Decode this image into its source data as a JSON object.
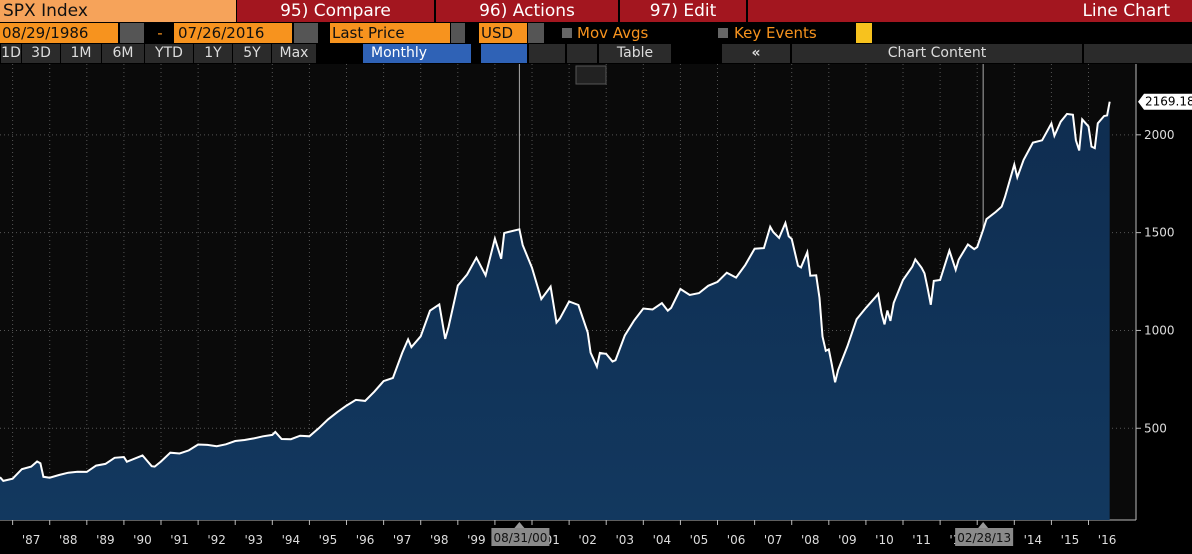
{
  "toolbar": {
    "security": "SPX Index",
    "compare": "95) Compare",
    "actions": "96) Actions",
    "edit": "97) Edit",
    "view": "Line Chart",
    "start_date": "08/29/1986",
    "dash": "-",
    "end_date": "07/26/2016",
    "field": "Last Price",
    "currency": "USD",
    "mov_avgs": "Mov Avgs",
    "key_events": "Key Events",
    "ranges": [
      "1D",
      "3D",
      "1M",
      "6M",
      "YTD",
      "1Y",
      "5Y",
      "Max"
    ],
    "period": "Monthly",
    "table": "Table",
    "collapse": "«",
    "chart_content": "Chart Content"
  },
  "chart_data": {
    "type": "line",
    "xlim": [
      1986.66,
      2017.28
    ],
    "ylim": [
      31,
      2362
    ],
    "yticks": [
      500,
      1000,
      1500,
      2000
    ],
    "xticks": [
      {
        "value": 1987,
        "label": "'87"
      },
      {
        "value": 1988,
        "label": "'88"
      },
      {
        "value": 1989,
        "label": "'89"
      },
      {
        "value": 1990,
        "label": "'90"
      },
      {
        "value": 1991,
        "label": "'91"
      },
      {
        "value": 1992,
        "label": "'92"
      },
      {
        "value": 1993,
        "label": "'93"
      },
      {
        "value": 1994,
        "label": "'94"
      },
      {
        "value": 1995,
        "label": "'95"
      },
      {
        "value": 1996,
        "label": "'96"
      },
      {
        "value": 1997,
        "label": "'97"
      },
      {
        "value": 1998,
        "label": "'98"
      },
      {
        "value": 1999,
        "label": "'99"
      },
      {
        "value": 2000,
        "label": "'00"
      },
      {
        "value": 2001,
        "label": "'01"
      },
      {
        "value": 2002,
        "label": "'02"
      },
      {
        "value": 2003,
        "label": "'03"
      },
      {
        "value": 2004,
        "label": "'04"
      },
      {
        "value": 2005,
        "label": "'05"
      },
      {
        "value": 2006,
        "label": "'06"
      },
      {
        "value": 2007,
        "label": "'07"
      },
      {
        "value": 2008,
        "label": "'08"
      },
      {
        "value": 2009,
        "label": "'09"
      },
      {
        "value": 2010,
        "label": "'10"
      },
      {
        "value": 2011,
        "label": "'11"
      },
      {
        "value": 2012,
        "label": "'12"
      },
      {
        "value": 2013,
        "label": "'13"
      },
      {
        "value": 2014,
        "label": "'14"
      },
      {
        "value": 2015,
        "label": "'15"
      },
      {
        "value": 2016,
        "label": "'16"
      }
    ],
    "markers": [
      {
        "x": 2000.66,
        "label": "08/31/00"
      },
      {
        "x": 2013.16,
        "label": "02/28/13"
      }
    ],
    "grid": true,
    "series": [
      {
        "name": "SPX Index",
        "color": "#ffffff",
        "fill": "#0f2d50",
        "x": [
          1986.66,
          1986.75,
          1987.0,
          1987.25,
          1987.5,
          1987.66,
          1987.75,
          1987.83,
          1988.0,
          1988.25,
          1988.5,
          1988.75,
          1989.0,
          1989.25,
          1989.5,
          1989.75,
          1990.0,
          1990.08,
          1990.5,
          1990.75,
          1990.83,
          1991.0,
          1991.25,
          1991.5,
          1991.75,
          1992.0,
          1992.25,
          1992.5,
          1992.75,
          1993.0,
          1993.25,
          1993.5,
          1993.75,
          1994.0,
          1994.08,
          1994.25,
          1994.5,
          1994.75,
          1995.0,
          1995.25,
          1995.5,
          1995.75,
          1996.0,
          1996.25,
          1996.5,
          1996.75,
          1997.0,
          1997.25,
          1997.5,
          1997.66,
          1997.75,
          1998.0,
          1998.25,
          1998.5,
          1998.66,
          1998.75,
          1999.0,
          1999.25,
          1999.5,
          1999.75,
          2000.0,
          2000.17,
          2000.25,
          2000.66,
          2000.75,
          2001.0,
          2001.25,
          2001.5,
          2001.66,
          2001.75,
          2002.0,
          2002.25,
          2002.5,
          2002.58,
          2002.75,
          2002.83,
          2003.0,
          2003.17,
          2003.25,
          2003.5,
          2003.75,
          2004.0,
          2004.25,
          2004.5,
          2004.66,
          2004.75,
          2005.0,
          2005.25,
          2005.5,
          2005.75,
          2006.0,
          2006.25,
          2006.5,
          2006.75,
          2007.0,
          2007.25,
          2007.42,
          2007.5,
          2007.66,
          2007.83,
          2007.92,
          2008.0,
          2008.17,
          2008.25,
          2008.42,
          2008.5,
          2008.66,
          2008.75,
          2008.83,
          2008.92,
          2009.0,
          2009.08,
          2009.17,
          2009.25,
          2009.5,
          2009.75,
          2010.0,
          2010.25,
          2010.33,
          2010.42,
          2010.5,
          2010.58,
          2010.66,
          2010.75,
          2011.0,
          2011.25,
          2011.33,
          2011.5,
          2011.58,
          2011.66,
          2011.75,
          2011.83,
          2012.0,
          2012.25,
          2012.42,
          2012.5,
          2012.75,
          2012.92,
          2013.0,
          2013.16,
          2013.25,
          2013.5,
          2013.66,
          2013.75,
          2014.0,
          2014.08,
          2014.25,
          2014.5,
          2014.75,
          2015.0,
          2015.08,
          2015.25,
          2015.42,
          2015.58,
          2015.66,
          2015.75,
          2015.83,
          2016.0,
          2016.08,
          2016.17,
          2016.25,
          2016.42,
          2016.5,
          2016.57
        ],
        "values": [
          250,
          231,
          242,
          291,
          304,
          330,
          321,
          252,
          247,
          261,
          273,
          278,
          277,
          309,
          318,
          349,
          353,
          329,
          361,
          306,
          304,
          330,
          375,
          371,
          387,
          417,
          415,
          408,
          418,
          435,
          440,
          448,
          459,
          466,
          481,
          445,
          444,
          462,
          459,
          500,
          545,
          582,
          616,
          645,
          640,
          687,
          741,
          757,
          885,
          954,
          915,
          970,
          1101,
          1133,
          957,
          1017,
          1229,
          1286,
          1372,
          1282,
          1469,
          1366,
          1498,
          1517,
          1436,
          1320,
          1160,
          1224,
          1040,
          1060,
          1148,
          1130,
          990,
          886,
          815,
          885,
          880,
          841,
          848,
          974,
          1050,
          1112,
          1107,
          1140,
          1101,
          1115,
          1212,
          1181,
          1191,
          1228,
          1248,
          1295,
          1270,
          1335,
          1418,
          1421,
          1530,
          1503,
          1473,
          1549,
          1481,
          1468,
          1331,
          1322,
          1400,
          1280,
          1282,
          1166,
          969,
          896,
          903,
          826,
          735,
          798,
          919,
          1057,
          1115,
          1169,
          1187,
          1089,
          1031,
          1102,
          1049,
          1141,
          1258,
          1326,
          1363,
          1320,
          1292,
          1219,
          1131,
          1253,
          1258,
          1408,
          1310,
          1362,
          1440,
          1416,
          1426,
          1514,
          1569,
          1606,
          1633,
          1682,
          1848,
          1783,
          1872,
          1960,
          1972,
          2058,
          1995,
          2067,
          2107,
          2103,
          1972,
          1920,
          2079,
          2043,
          1940,
          1932,
          2059,
          2096,
          2099,
          2169.18
        ]
      }
    ]
  }
}
